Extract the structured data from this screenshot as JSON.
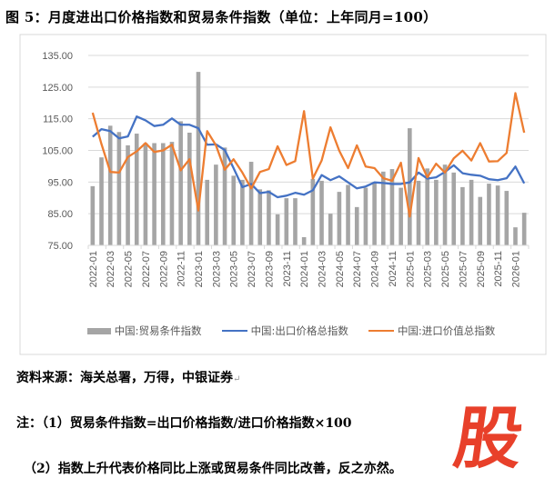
{
  "title": "图 5：月度进出口价格指数和贸易条件指数（单位：上年同月=100）",
  "chart_data": {
    "type": "bar+line",
    "title": "图 5：月度进出口价格指数和贸易条件指数（单位：上年同月=100）",
    "ylim": [
      75,
      135
    ],
    "yticks": [
      "75.00",
      "85.00",
      "95.00",
      "105.00",
      "115.00",
      "125.00",
      "135.00"
    ],
    "grid": true,
    "legend_position": "bottom",
    "x": [
      "2022-01",
      "2022-02",
      "2022-03",
      "2022-04",
      "2022-05",
      "2022-06",
      "2022-07",
      "2022-08",
      "2022-09",
      "2022-10",
      "2022-11",
      "2022-12",
      "2023-01",
      "2023-02",
      "2023-03",
      "2023-04",
      "2023-05",
      "2023-06",
      "2023-07",
      "2023-08",
      "2023-09",
      "2023-10",
      "2023-11",
      "2023-12",
      "2024-01",
      "2024-02",
      "2024-03",
      "2024-04",
      "2024-05",
      "2024-06",
      "2024-07",
      "2024-08",
      "2024-09",
      "2024-10",
      "2024-11",
      "2024-12",
      "2025-01",
      "2025-02",
      "2025-03",
      "2025-04",
      "2025-05",
      "2025-06",
      "2025-07",
      "2025-08",
      "2025-09",
      "2025-10",
      "2025-11",
      "2025-12",
      "2026-01",
      "2026-02"
    ],
    "series": [
      {
        "name": "中国:贸易条件指数",
        "type": "bar",
        "color": "#a5a5a5",
        "values": [
          93.7,
          102.8,
          112.8,
          110.8,
          106.6,
          110.3,
          107.3,
          107.3,
          107.3,
          107.7,
          114.2,
          110.6,
          129.8,
          95.7,
          100.5,
          105.9,
          97.0,
          95.7,
          101.4,
          92.7,
          92.4,
          84.8,
          89.9,
          89.9,
          77.6,
          96.0,
          95.4,
          85.0,
          91.9,
          94.1,
          87.1,
          93.2,
          94.6,
          98.3,
          99.1,
          93.2,
          112.0,
          95.4,
          99.3,
          95.7,
          100.5,
          98.0,
          93.4,
          95.7,
          90.3,
          94.5,
          93.9,
          92.2,
          80.7,
          85.3
        ]
      },
      {
        "name": "中国:出口价格总指数",
        "type": "line",
        "color": "#4472c4",
        "values": [
          109.3,
          111.7,
          111.1,
          108.8,
          109.4,
          115.7,
          114.5,
          112.7,
          113.1,
          115.1,
          113.1,
          113.1,
          112.0,
          106.8,
          106.9,
          105.1,
          99.4,
          93.4,
          94.4,
          91.5,
          91.9,
          90.2,
          90.7,
          91.6,
          91.0,
          92.4,
          97.2,
          95.6,
          96.8,
          94.9,
          93.0,
          93.6,
          94.9,
          94.7,
          94.4,
          94.4,
          94.9,
          98.0,
          96.1,
          96.5,
          98.2,
          100.3,
          97.8,
          97.3,
          97.0,
          95.9,
          95.6,
          96.2,
          99.9,
          94.6
        ]
      },
      {
        "name": "中国:进口价值总指数",
        "type": "line",
        "color": "#ed7d31",
        "values": [
          116.9,
          107.0,
          98.2,
          98.0,
          102.9,
          104.7,
          107.3,
          104.5,
          105.0,
          106.8,
          98.7,
          102.2,
          86.0,
          111.1,
          106.6,
          98.9,
          102.2,
          98.0,
          93.0,
          98.2,
          99.1,
          106.3,
          100.4,
          101.6,
          117.4,
          96.1,
          101.8,
          112.3,
          104.9,
          99.4,
          106.6,
          99.9,
          99.4,
          96.2,
          95.4,
          101.1,
          84.1,
          102.6,
          96.5,
          100.8,
          98.0,
          102.5,
          104.9,
          101.8,
          107.3,
          101.5,
          101.6,
          104.2,
          123.1,
          110.6
        ]
      }
    ]
  },
  "source": "资料来源：海关总署，万得，中银证券",
  "note1": "注：（1）贸易条件指数=出口价格指数/进口价格指数×100",
  "note2": "（2）指数上升代表价格同比上涨或贸易条件同比改善，反之亦然。",
  "watermark": "股"
}
